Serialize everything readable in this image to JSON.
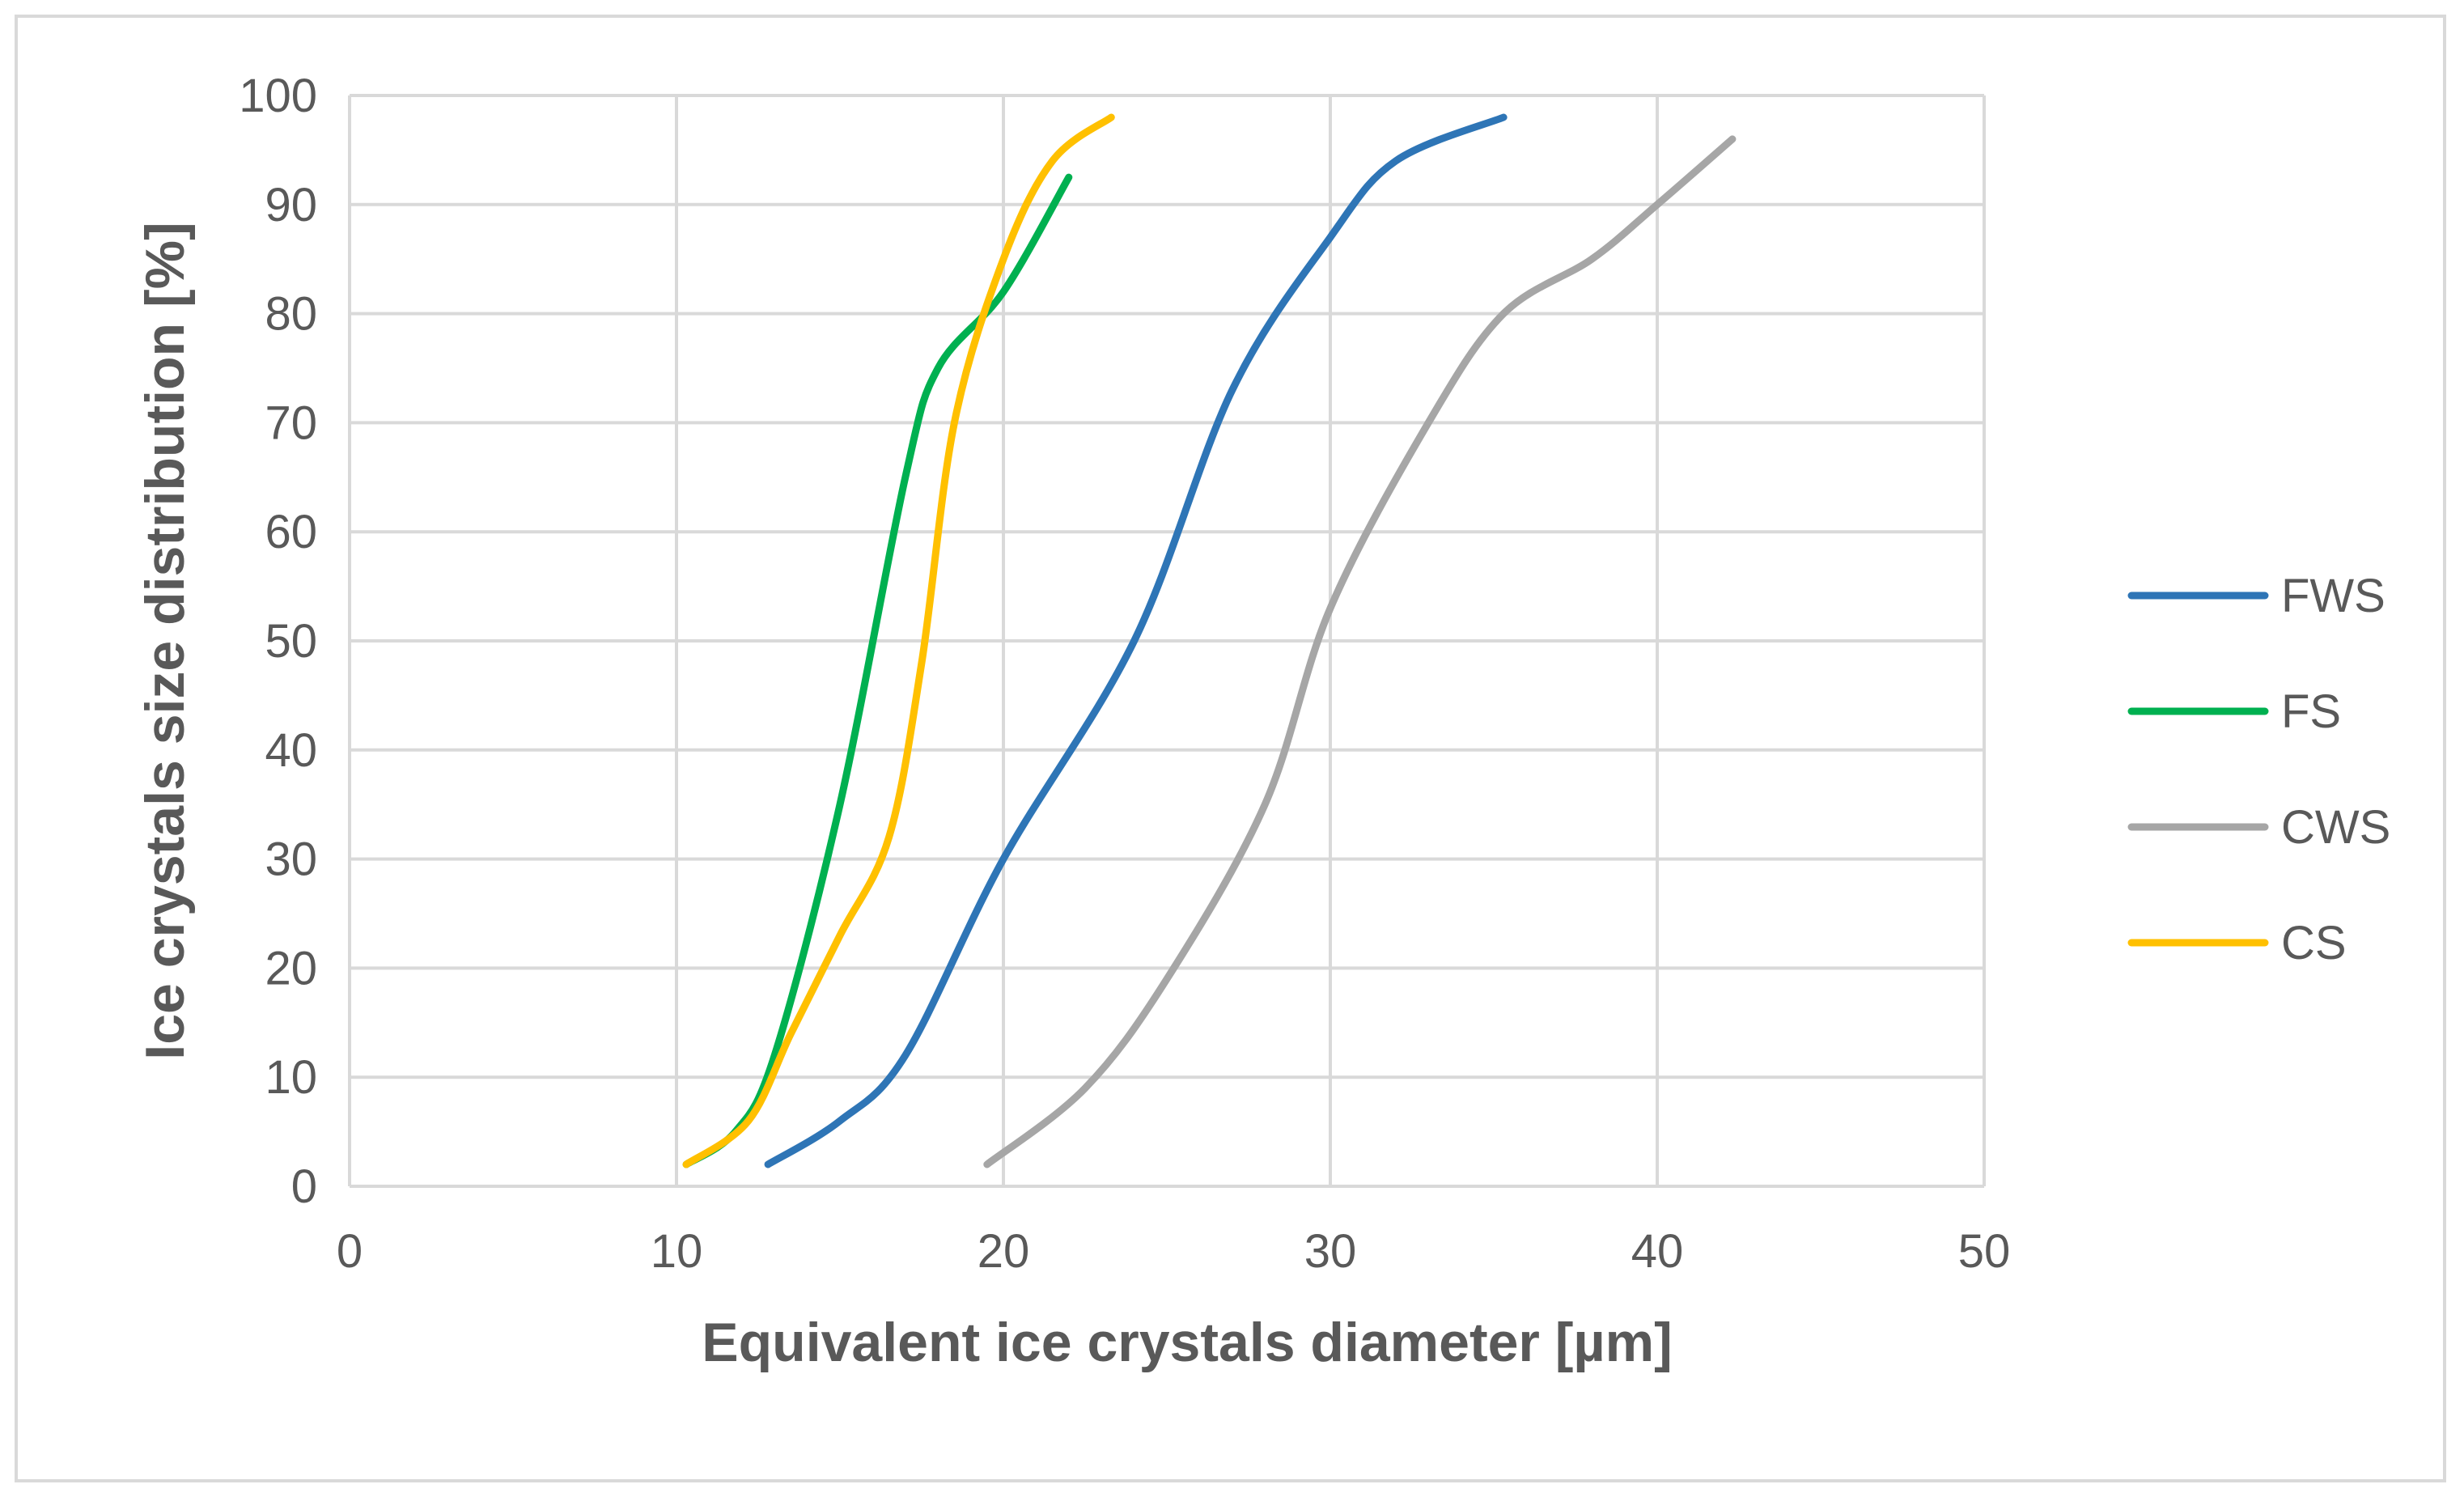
{
  "chart_data": {
    "type": "line",
    "title": "",
    "xlabel": "Equivalent ice crystals diameter [µm]",
    "ylabel": "Ice crystals size distribution [%]",
    "xlim": [
      0,
      50
    ],
    "ylim": [
      0,
      100
    ],
    "xticks": [
      0,
      10,
      20,
      30,
      40,
      50
    ],
    "yticks": [
      0,
      10,
      20,
      30,
      40,
      50,
      60,
      70,
      80,
      90,
      100
    ],
    "grid": true,
    "legend_position": "right",
    "series": [
      {
        "name": "FWS",
        "color": "#2e75b6",
        "points": [
          [
            12.8,
            2
          ],
          [
            15,
            6
          ],
          [
            17,
            12
          ],
          [
            20,
            30
          ],
          [
            24,
            50
          ],
          [
            27,
            73
          ],
          [
            30,
            87
          ],
          [
            32,
            94
          ],
          [
            35.3,
            98
          ]
        ]
      },
      {
        "name": "FS",
        "color": "#00b050",
        "points": [
          [
            10.3,
            2
          ],
          [
            11.8,
            5
          ],
          [
            13,
            12
          ],
          [
            15,
            35
          ],
          [
            17,
            65
          ],
          [
            18,
            75
          ],
          [
            20,
            82
          ],
          [
            22,
            92.5
          ]
        ]
      },
      {
        "name": "CWS",
        "color": "#a6a6a6",
        "points": [
          [
            19.5,
            2
          ],
          [
            22.5,
            9
          ],
          [
            25,
            19
          ],
          [
            28,
            35
          ],
          [
            30,
            53
          ],
          [
            33,
            70
          ],
          [
            35.3,
            80
          ],
          [
            38,
            85
          ],
          [
            40,
            90
          ],
          [
            42.3,
            96
          ]
        ]
      },
      {
        "name": "CS",
        "color": "#ffc000",
        "points": [
          [
            10.3,
            2
          ],
          [
            12.2,
            6
          ],
          [
            13.5,
            14
          ],
          [
            15,
            23
          ],
          [
            16.5,
            32
          ],
          [
            17.5,
            48
          ],
          [
            18.5,
            70
          ],
          [
            20,
            85
          ],
          [
            21.5,
            94
          ],
          [
            23.3,
            98
          ]
        ]
      }
    ]
  }
}
